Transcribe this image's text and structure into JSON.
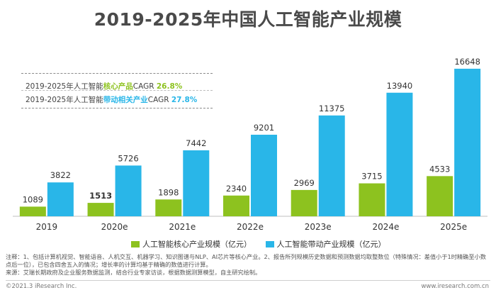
{
  "title": "2019-2025年中国人工智能产业规模",
  "cagr": {
    "core_prefix": "2019-2025年人工智能",
    "core_highlight": "核心产品",
    "core_suffix": "CAGR",
    "core_value": "26.8%",
    "driven_prefix": "2019-2025年人工智能",
    "driven_highlight": "带动相关产业",
    "driven_suffix": "CAGR",
    "driven_value": "27.8%"
  },
  "colors": {
    "core": "#8dc21f",
    "driven": "#29b6e8"
  },
  "chart_data": {
    "type": "bar",
    "title": "2019-2025年中国人工智能产业规模",
    "categories": [
      "2019",
      "2020e",
      "2021e",
      "2022e",
      "2023e",
      "2024e",
      "2025e"
    ],
    "series": [
      {
        "name": "人工智能核心产业规模（亿元）",
        "values": [
          1089,
          1513,
          1898,
          2340,
          2969,
          3715,
          4533
        ]
      },
      {
        "name": "人工智能带动产业规模（亿元）",
        "values": [
          3822,
          5726,
          7442,
          9201,
          11375,
          13940,
          16648
        ]
      }
    ],
    "ylim": [
      0,
      18000
    ],
    "grid": false,
    "legend": "bottom"
  },
  "notes": {
    "line1": "注释：1、包括计算机视觉、智能语音、人机交互、机器学习、知识图谱与NLP、AI芯片等核心产业。2、报告所列规模历史数据和预测数据均取整数位（特殊情况：差值小于1时精确至小数点后一位），已包含四舍五入的情况；增长率的计算均基于精确的数值进行计算。",
    "line2": "来源：艾瑞长期政府及企业服务数据监测，结合行业专家访谈，根据数据测算模型，自主研究绘制。"
  },
  "footer": {
    "left": "©2021.3 iResearch Inc.",
    "right": "www.iresearch.com.cn"
  }
}
